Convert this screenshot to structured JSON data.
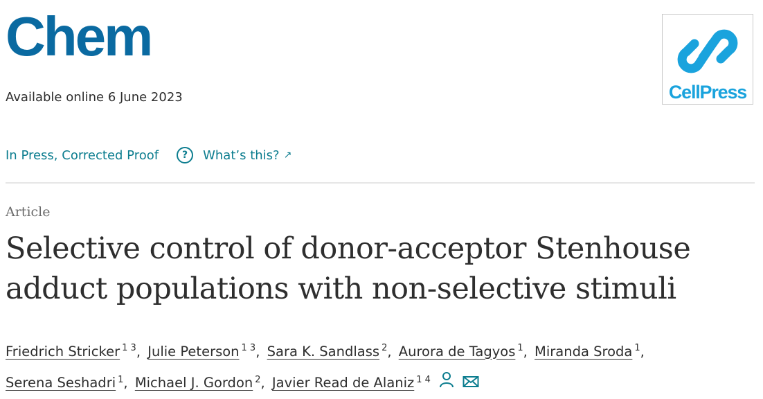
{
  "journal": {
    "title": "Chem",
    "logo_text": "CellPress",
    "logo_icon": "cellpress-logo-icon"
  },
  "publication": {
    "available_online": "Available online 6 June 2023",
    "status_label": "In Press, Corrected Proof",
    "help_icon": "question-circle-icon",
    "whats_this_label": "What’s this?",
    "external_link_icon": "arrow-up-right-icon"
  },
  "article": {
    "type": "Article",
    "title": "Selective control of donor-acceptor Stenhouse adduct populations with non-selective stimuli"
  },
  "authors": [
    {
      "name": "Friedrich Stricker",
      "affiliations": "1 3"
    },
    {
      "name": "Julie Peterson",
      "affiliations": "1 3"
    },
    {
      "name": "Sara K. Sandlass",
      "affiliations": "2"
    },
    {
      "name": "Aurora de Tagyos",
      "affiliations": "1"
    },
    {
      "name": "Miranda Sroda",
      "affiliations": "1"
    },
    {
      "name": "Serena Seshadri",
      "affiliations": "1"
    },
    {
      "name": "Michael J. Gordon",
      "affiliations": "2"
    },
    {
      "name": "Javier Read de Alaniz",
      "affiliations": "1 4"
    }
  ],
  "author_icons": [
    "person-icon",
    "envelope-icon"
  ],
  "colors": {
    "brand_blue": "#0a6aa1",
    "link_teal": "#0c7d8f",
    "logo_cyan": "#1aa3dd",
    "text": "#2e2e2e"
  }
}
